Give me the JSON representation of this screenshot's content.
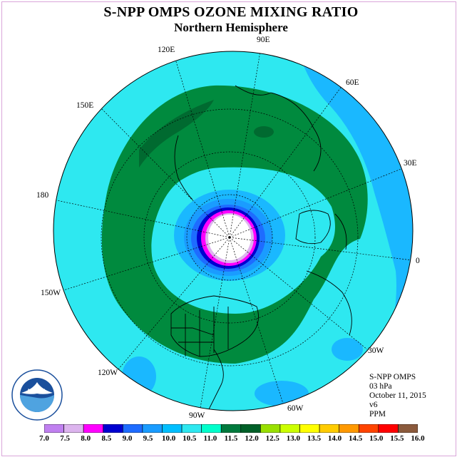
{
  "title": "S-NPP OMPS OZONE MIXING RATIO",
  "subtitle": "Northern Hemisphere",
  "lon_labels": [
    "90E",
    "60E",
    "30E",
    "0",
    "30W",
    "60W",
    "90W",
    "120W",
    "150W",
    "180",
    "150E",
    "120E"
  ],
  "info": {
    "instrument": "S-NPP OMPS",
    "level": "03 hPa",
    "date": "October 11, 2015",
    "version": "v6",
    "units": "PPM"
  },
  "colorbar": {
    "ticks": [
      "7.0",
      "7.5",
      "8.0",
      "8.5",
      "9.0",
      "9.5",
      "10.0",
      "10.5",
      "11.0",
      "11.5",
      "12.0",
      "12.5",
      "13.0",
      "13.5",
      "14.0",
      "14.5",
      "15.0",
      "15.5",
      "16.0"
    ],
    "colors": [
      "#c080f0",
      "#dcb4ee",
      "#ff00ff",
      "#0000d0",
      "#1e6cff",
      "#1a9cff",
      "#00bfff",
      "#2ee8f0",
      "#00ffcc",
      "#007a3d",
      "#006028",
      "#99e000",
      "#ccff00",
      "#ffff00",
      "#ffcc00",
      "#ff9900",
      "#ff4400",
      "#ff0000",
      "#8b5a3c"
    ]
  },
  "logo": {
    "text": "NOAA",
    "icon": "noaa-logo-icon"
  }
}
